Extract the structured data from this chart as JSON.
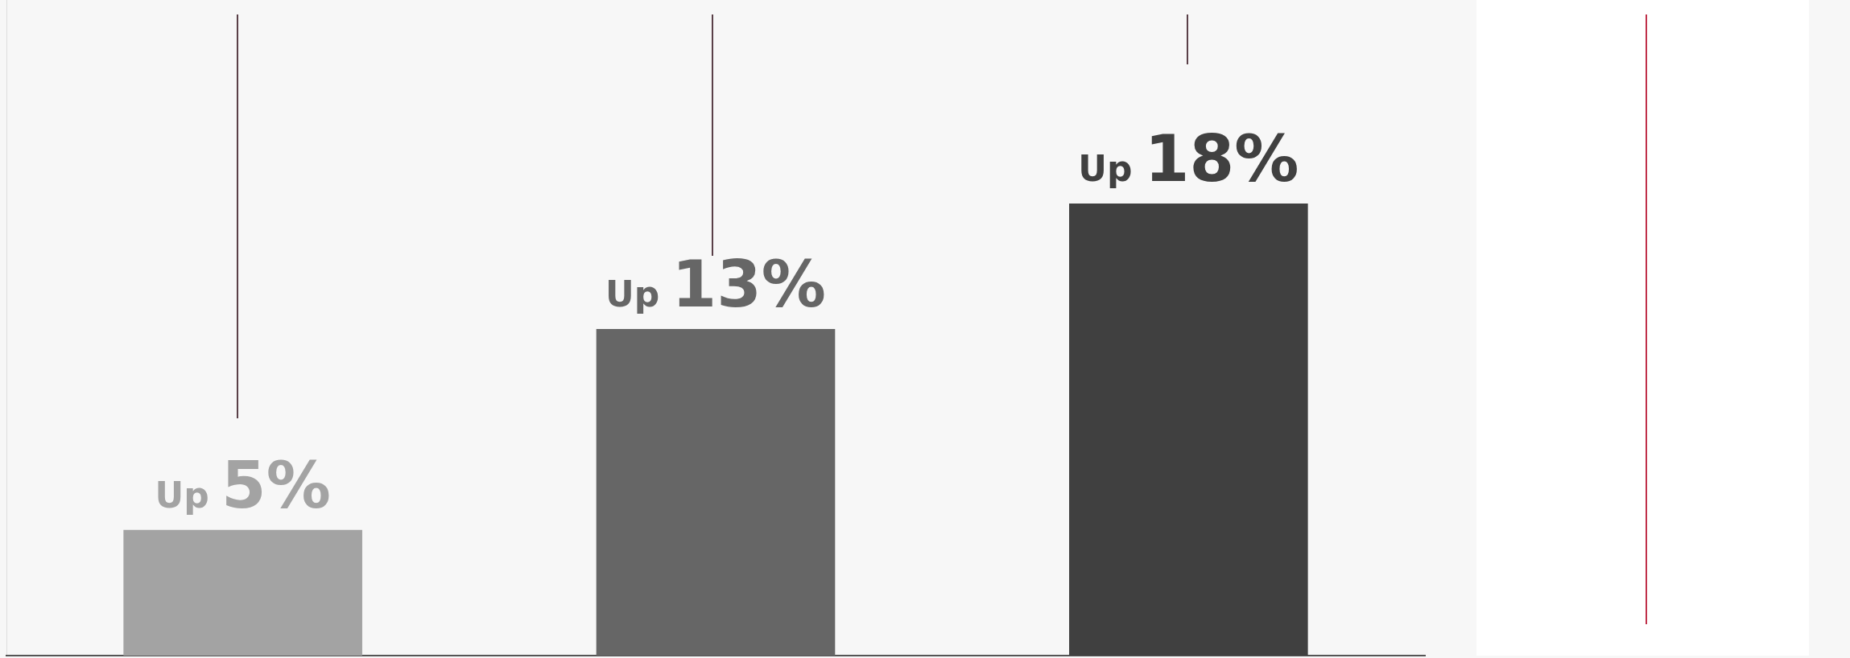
{
  "chart_data": {
    "type": "bar",
    "categories": [
      null,
      null,
      null
    ],
    "values": [
      5,
      13,
      18
    ],
    "colors": [
      "#a3a3a3",
      "#666666",
      "#404040"
    ],
    "value_labels": [
      "Up 5%",
      "Up 13%",
      "Up 18%"
    ],
    "legend": false,
    "grid": false,
    "tick_labels": false
  }
}
